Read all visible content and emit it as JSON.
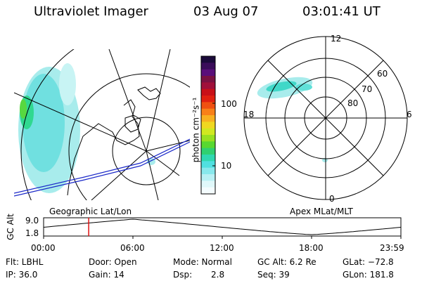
{
  "header": {
    "title": "Ultraviolet Imager",
    "date": "03 Aug 07",
    "time": "03:01:41 UT"
  },
  "colorbar": {
    "unit_label": "photon cm⁻²s⁻¹",
    "ticks": [
      "100",
      "10"
    ],
    "colors": [
      "#1a0a3a",
      "#3a0c5a",
      "#5a0f7a",
      "#7a1242",
      "#a0103a",
      "#c81018",
      "#e02010",
      "#f05010",
      "#f88018",
      "#f8b020",
      "#f0d820",
      "#d0e820",
      "#98e020",
      "#58d830",
      "#30d070",
      "#30d8b0",
      "#50e0e0",
      "#88e8ec",
      "#b8f0f4",
      "#e0f8fa",
      "#f4fcfe"
    ]
  },
  "map_left": {
    "label": "Geographic Lat/Lon"
  },
  "map_right": {
    "label": "Apex MLat/MLT",
    "mlt_labels": [
      "12",
      "18",
      "6",
      "0"
    ],
    "lat_labels": [
      "60",
      "70",
      "80"
    ]
  },
  "timeline": {
    "ylabel": "GC Alt",
    "yticks": [
      "9.0",
      "1.8"
    ],
    "xticks": [
      "00:00",
      "06:00",
      "12:00",
      "18:00",
      "23:59"
    ],
    "marker_hour": 3.03
  },
  "status": {
    "flt": "Flt: LBHL",
    "ip": "IP: 36.0",
    "door": "Door: Open",
    "gain": "Gain: 14",
    "mode": "Mode: Normal",
    "dsp_label": "Dsp:",
    "dsp_value": "2.8",
    "gcalt": "GC Alt: 6.2 Re",
    "seq": "Seq: 39",
    "glat": "GLat: −72.8",
    "glon": "GLon: 181.8"
  }
}
